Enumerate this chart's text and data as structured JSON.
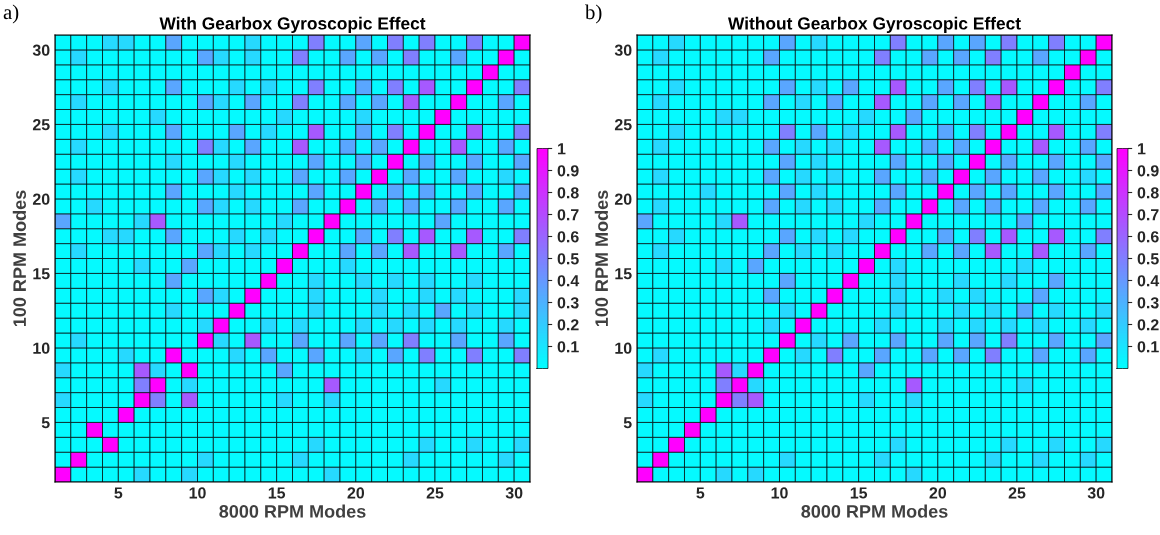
{
  "chart_data": [
    {
      "type": "heatmap",
      "title": "With Gearbox Gyroscopic Effect",
      "xlabel": "8000 RPM Modes",
      "ylabel": "100 RPM Modes",
      "annotations": [
        "a)"
      ],
      "xlim": [
        1,
        31
      ],
      "ylim": [
        1,
        31
      ],
      "xticks": [
        5,
        10,
        15,
        20,
        25,
        30
      ],
      "yticks": [
        5,
        10,
        15,
        20,
        25,
        30
      ],
      "clim": [
        0,
        1
      ],
      "cticks": [
        0.1,
        0.2,
        0.3,
        0.4,
        0.5,
        0.6,
        0.7,
        0.8,
        0.9,
        1
      ],
      "cells": [
        [
          0.02,
          0.02,
          0.02,
          0.15,
          0.15,
          0.02,
          0.02,
          0.35,
          0.02,
          0.02,
          0.02,
          0.02,
          0.15,
          0.02,
          0.02,
          0.02,
          0.5,
          0.02,
          0.02,
          0.35,
          0.02,
          0.5,
          0.02,
          0.5,
          0.02,
          0.02,
          0.5,
          0.02,
          0.02,
          1
        ],
        [
          0.02,
          0.15,
          0.02,
          0.02,
          0.02,
          0.02,
          0.02,
          0.02,
          0.02,
          0.35,
          0.15,
          0.02,
          0.15,
          0.02,
          0.02,
          0.5,
          0.02,
          0.02,
          0.35,
          0.02,
          0.35,
          0.02,
          0.5,
          0.02,
          0.02,
          0.35,
          0.02,
          0.02,
          1,
          0.02
        ],
        [
          0.02,
          0.02,
          0.02,
          0.02,
          0.02,
          0.02,
          0.02,
          0.02,
          0.02,
          0.02,
          0.02,
          0.02,
          0.02,
          0.02,
          0.02,
          0.02,
          0.02,
          0.02,
          0.02,
          0.02,
          0.02,
          0.02,
          0.02,
          0.02,
          0.02,
          0.02,
          0.02,
          1,
          0.02,
          0.02
        ],
        [
          0.02,
          0.02,
          0.02,
          0.15,
          0.02,
          0.02,
          0.02,
          0.35,
          0.02,
          0.02,
          0.02,
          0.15,
          0.02,
          0.15,
          0.02,
          0.02,
          0.5,
          0.02,
          0.02,
          0.35,
          0.02,
          0.5,
          0.02,
          0.65,
          0.02,
          0.02,
          1,
          0.02,
          0.02,
          0.5
        ],
        [
          0.02,
          0.15,
          0.02,
          0.02,
          0.02,
          0.02,
          0.02,
          0.02,
          0.02,
          0.35,
          0.15,
          0.02,
          0.35,
          0.02,
          0.02,
          0.5,
          0.02,
          0.02,
          0.35,
          0.02,
          0.35,
          0.02,
          0.65,
          0.02,
          0.02,
          1,
          0.02,
          0.02,
          0.35,
          0.02
        ],
        [
          0.02,
          0.02,
          0.02,
          0.02,
          0.02,
          0.02,
          0.15,
          0.02,
          0.02,
          0.02,
          0.02,
          0.02,
          0.02,
          0.02,
          0.15,
          0.02,
          0.02,
          0.02,
          0.02,
          0.15,
          0.02,
          0.02,
          0.02,
          0.02,
          1,
          0.02,
          0.02,
          0.02,
          0.02,
          0.02
        ],
        [
          0.02,
          0.02,
          0.02,
          0.15,
          0.02,
          0.02,
          0.02,
          0.35,
          0.02,
          0.02,
          0.02,
          0.35,
          0.02,
          0.15,
          0.02,
          0.02,
          0.65,
          0.02,
          0.02,
          0.35,
          0.02,
          0.5,
          0.02,
          1,
          0.02,
          0.02,
          0.65,
          0.02,
          0.02,
          0.5
        ],
        [
          0.02,
          0.15,
          0.02,
          0.02,
          0.02,
          0.02,
          0.02,
          0.02,
          0.02,
          0.5,
          0.15,
          0.02,
          0.35,
          0.02,
          0.02,
          0.65,
          0.02,
          0.02,
          0.35,
          0.02,
          0.35,
          0.02,
          1,
          0.02,
          0.02,
          0.65,
          0.02,
          0.02,
          0.35,
          0.02
        ],
        [
          0.02,
          0.02,
          0.02,
          0.02,
          0.02,
          0.02,
          0.02,
          0.15,
          0.02,
          0.02,
          0.02,
          0.15,
          0.02,
          0.02,
          0.02,
          0.02,
          0.35,
          0.02,
          0.02,
          0.35,
          0.02,
          1,
          0.02,
          0.35,
          0.02,
          0.02,
          0.35,
          0.02,
          0.02,
          0.35
        ],
        [
          0.02,
          0.15,
          0.02,
          0.02,
          0.02,
          0.02,
          0.02,
          0.02,
          0.02,
          0.35,
          0.15,
          0.02,
          0.15,
          0.02,
          0.02,
          0.35,
          0.02,
          0.02,
          0.35,
          0.02,
          1,
          0.02,
          0.35,
          0.02,
          0.02,
          0.35,
          0.02,
          0.02,
          0.15,
          0.02
        ],
        [
          0.02,
          0.02,
          0.02,
          0.02,
          0.02,
          0.02,
          0.02,
          0.35,
          0.02,
          0.02,
          0.02,
          0.15,
          0.02,
          0.02,
          0.02,
          0.02,
          0.35,
          0.02,
          0.02,
          1,
          0.02,
          0.35,
          0.02,
          0.35,
          0.02,
          0.02,
          0.35,
          0.02,
          0.02,
          0.35
        ],
        [
          0.02,
          0.02,
          0.15,
          0.02,
          0.02,
          0.02,
          0.02,
          0.02,
          0.02,
          0.35,
          0.15,
          0.02,
          0.15,
          0.02,
          0.02,
          0.35,
          0.02,
          0.02,
          1,
          0.02,
          0.35,
          0.02,
          0.35,
          0.02,
          0.02,
          0.35,
          0.02,
          0.02,
          0.35,
          0.02
        ],
        [
          0.35,
          0.02,
          0.02,
          0.02,
          0.02,
          0.15,
          0.65,
          0.02,
          0.02,
          0.02,
          0.02,
          0.02,
          0.02,
          0.02,
          0.15,
          0.02,
          0.02,
          1,
          0.02,
          0.02,
          0.02,
          0.02,
          0.02,
          0.02,
          0.35,
          0.02,
          0.02,
          0.02,
          0.02,
          0.02
        ],
        [
          0.02,
          0.02,
          0.02,
          0.15,
          0.15,
          0.02,
          0.02,
          0.35,
          0.02,
          0.02,
          0.02,
          0.15,
          0.02,
          0.15,
          0.02,
          0.02,
          1,
          0.02,
          0.02,
          0.35,
          0.02,
          0.5,
          0.02,
          0.65,
          0.02,
          0.02,
          0.65,
          0.02,
          0.02,
          0.5
        ],
        [
          0.02,
          0.15,
          0.02,
          0.02,
          0.02,
          0.02,
          0.02,
          0.02,
          0.02,
          0.35,
          0.15,
          0.02,
          0.15,
          0.02,
          0.02,
          1,
          0.02,
          0.02,
          0.35,
          0.02,
          0.35,
          0.02,
          0.65,
          0.02,
          0.02,
          0.65,
          0.02,
          0.02,
          0.35,
          0.02
        ],
        [
          0.02,
          0.02,
          0.02,
          0.02,
          0.02,
          0.15,
          0.02,
          0.02,
          0.35,
          0.02,
          0.02,
          0.02,
          0.02,
          0.02,
          1,
          0.02,
          0.02,
          0.02,
          0.15,
          0.02,
          0.02,
          0.02,
          0.02,
          0.02,
          0.02,
          0.02,
          0.02,
          0.02,
          0.02,
          0.02
        ],
        [
          0.02,
          0.02,
          0.02,
          0.02,
          0.02,
          0.02,
          0.02,
          0.35,
          0.02,
          0.02,
          0.02,
          0.02,
          0.02,
          1,
          0.02,
          0.02,
          0.15,
          0.02,
          0.02,
          0.15,
          0.02,
          0.15,
          0.02,
          0.15,
          0.02,
          0.02,
          0.15,
          0.02,
          0.02,
          0.02
        ],
        [
          0.02,
          0.02,
          0.02,
          0.02,
          0.02,
          0.02,
          0.02,
          0.02,
          0.02,
          0.35,
          0.15,
          0.02,
          1,
          0.02,
          0.02,
          0.02,
          0.15,
          0.02,
          0.02,
          0.02,
          0.15,
          0.02,
          0.02,
          0.15,
          0.02,
          0.15,
          0.02,
          0.02,
          0.02,
          0.15
        ],
        [
          0.02,
          0.02,
          0.02,
          0.02,
          0.02,
          0.02,
          0.02,
          0.15,
          0.02,
          0.02,
          0.02,
          1,
          0.02,
          0.02,
          0.02,
          0.02,
          0.15,
          0.02,
          0.02,
          0.02,
          0.15,
          0.02,
          0.15,
          0.02,
          0.35,
          0.02,
          0.15,
          0.02,
          0.02,
          0.15
        ],
        [
          0.02,
          0.02,
          0.02,
          0.02,
          0.02,
          0.02,
          0.02,
          0.02,
          0.02,
          0.15,
          1,
          0.02,
          0.02,
          0.15,
          0.02,
          0.15,
          0.02,
          0.02,
          0.02,
          0.15,
          0.02,
          0.15,
          0.02,
          0.15,
          0.02,
          0.15,
          0.02,
          0.02,
          0.15,
          0.02
        ],
        [
          0.02,
          0.15,
          0.02,
          0.02,
          0.02,
          0.02,
          0.02,
          0.02,
          0.02,
          1,
          0.15,
          0.02,
          0.65,
          0.02,
          0.02,
          0.35,
          0.02,
          0.02,
          0.35,
          0.02,
          0.35,
          0.02,
          0.5,
          0.02,
          0.02,
          0.35,
          0.02,
          0.02,
          0.35,
          0.02
        ],
        [
          0.02,
          0.02,
          0.02,
          0.02,
          0.15,
          0.02,
          0.02,
          1,
          0.02,
          0.02,
          0.02,
          0.15,
          0.02,
          0.35,
          0.02,
          0.02,
          0.35,
          0.02,
          0.02,
          0.15,
          0.02,
          0.35,
          0.02,
          0.5,
          0.02,
          0.02,
          0.5,
          0.02,
          0.02,
          0.5
        ],
        [
          0.15,
          0.02,
          0.02,
          0.02,
          0.02,
          0.65,
          0.15,
          0.02,
          1,
          0.02,
          0.02,
          0.02,
          0.02,
          0.02,
          0.35,
          0.02,
          0.02,
          0.02,
          0.02,
          0.02,
          0.02,
          0.02,
          0.02,
          0.02,
          0.02,
          0.02,
          0.02,
          0.02,
          0.02,
          0.02
        ],
        [
          0.02,
          0.02,
          0.02,
          0.02,
          0.02,
          0.5,
          1,
          0.02,
          0.15,
          0.02,
          0.02,
          0.02,
          0.02,
          0.02,
          0.02,
          0.02,
          0.02,
          0.65,
          0.02,
          0.02,
          0.02,
          0.02,
          0.02,
          0.02,
          0.15,
          0.02,
          0.02,
          0.02,
          0.02,
          0.02
        ],
        [
          0.15,
          0.02,
          0.02,
          0.02,
          0.02,
          1,
          0.5,
          0.02,
          0.65,
          0.02,
          0.02,
          0.02,
          0.02,
          0.02,
          0.15,
          0.02,
          0.02,
          0.15,
          0.02,
          0.02,
          0.02,
          0.02,
          0.02,
          0.02,
          0.02,
          0.02,
          0.02,
          0.02,
          0.02,
          0.02
        ],
        [
          0.02,
          0.02,
          0.02,
          0.02,
          1,
          0.02,
          0.02,
          0.02,
          0.02,
          0.02,
          0.02,
          0.02,
          0.02,
          0.02,
          0.02,
          0.02,
          0.02,
          0.02,
          0.02,
          0.02,
          0.02,
          0.02,
          0.02,
          0.02,
          0.02,
          0.02,
          0.02,
          0.02,
          0.02,
          0.02
        ],
        [
          0.02,
          0.02,
          1,
          0.02,
          0.02,
          0.02,
          0.02,
          0.02,
          0.02,
          0.02,
          0.02,
          0.02,
          0.02,
          0.02,
          0.02,
          0.02,
          0.02,
          0.02,
          0.02,
          0.02,
          0.02,
          0.02,
          0.02,
          0.02,
          0.02,
          0.02,
          0.02,
          0.02,
          0.02,
          0.02
        ],
        [
          0.02,
          0.02,
          0.02,
          1,
          0.02,
          0.02,
          0.02,
          0.02,
          0.02,
          0.02,
          0.02,
          0.02,
          0.02,
          0.02,
          0.02,
          0.02,
          0.15,
          0.02,
          0.02,
          0.02,
          0.02,
          0.02,
          0.02,
          0.15,
          0.02,
          0.02,
          0.15,
          0.02,
          0.02,
          0.15
        ],
        [
          0.02,
          1,
          0.02,
          0.02,
          0.02,
          0.02,
          0.02,
          0.02,
          0.02,
          0.15,
          0.02,
          0.02,
          0.02,
          0.02,
          0.02,
          0.15,
          0.02,
          0.02,
          0.02,
          0.02,
          0.02,
          0.02,
          0.15,
          0.02,
          0.02,
          0.02,
          0.02,
          0.02,
          0.15,
          0.02
        ],
        [
          1,
          0.02,
          0.02,
          0.02,
          0.02,
          0.15,
          0.02,
          0.02,
          0.15,
          0.02,
          0.02,
          0.02,
          0.02,
          0.02,
          0.02,
          0.02,
          0.02,
          0.15,
          0.02,
          0.02,
          0.02,
          0.02,
          0.02,
          0.02,
          0.02,
          0.02,
          0.02,
          0.02,
          0.02,
          0.02
        ]
      ]
    },
    {
      "type": "heatmap",
      "title": "Without Gearbox Gyroscopic Effect",
      "xlabel": "8000 RPM Modes",
      "ylabel": "100 RPM Modes",
      "annotations": [
        "b)"
      ],
      "xlim": [
        1,
        31
      ],
      "ylim": [
        1,
        31
      ],
      "xticks": [
        5,
        10,
        15,
        20,
        25,
        30
      ],
      "yticks": [
        5,
        10,
        15,
        20,
        25,
        30
      ],
      "clim": [
        0,
        1
      ],
      "cticks": [
        0.1,
        0.2,
        0.3,
        0.4,
        0.5,
        0.6,
        0.7,
        0.8,
        0.9,
        1
      ],
      "cells": [
        [
          0.02,
          0.02,
          0.15,
          0.02,
          0.02,
          0.02,
          0.02,
          0.02,
          0.02,
          0.35,
          0.02,
          0.15,
          0.02,
          0.02,
          0.02,
          0.02,
          0.5,
          0.02,
          0.02,
          0.35,
          0.02,
          0.35,
          0.02,
          0.5,
          0.02,
          0.02,
          0.5,
          0.02,
          0.02,
          1
        ],
        [
          0.02,
          0.15,
          0.02,
          0.02,
          0.02,
          0.02,
          0.02,
          0.02,
          0.35,
          0.02,
          0.02,
          0.02,
          0.02,
          0.02,
          0.02,
          0.5,
          0.02,
          0.02,
          0.35,
          0.02,
          0.35,
          0.02,
          0.5,
          0.02,
          0.02,
          0.35,
          0.02,
          0.02,
          1,
          0.02
        ],
        [
          0.02,
          0.02,
          0.02,
          0.02,
          0.02,
          0.02,
          0.02,
          0.02,
          0.02,
          0.02,
          0.02,
          0.02,
          0.02,
          0.02,
          0.02,
          0.02,
          0.02,
          0.02,
          0.02,
          0.02,
          0.02,
          0.02,
          0.02,
          0.02,
          0.02,
          0.02,
          0.02,
          1,
          0.02,
          0.02
        ],
        [
          0.02,
          0.02,
          0.15,
          0.02,
          0.02,
          0.02,
          0.02,
          0.02,
          0.02,
          0.35,
          0.02,
          0.15,
          0.02,
          0.35,
          0.02,
          0.02,
          0.65,
          0.02,
          0.02,
          0.35,
          0.02,
          0.5,
          0.02,
          0.65,
          0.02,
          0.02,
          1,
          0.02,
          0.02,
          0.5
        ],
        [
          0.02,
          0.15,
          0.02,
          0.02,
          0.02,
          0.02,
          0.02,
          0.02,
          0.35,
          0.02,
          0.15,
          0.02,
          0.35,
          0.02,
          0.02,
          0.65,
          0.02,
          0.02,
          0.35,
          0.02,
          0.35,
          0.02,
          0.65,
          0.02,
          0.02,
          1,
          0.02,
          0.02,
          0.35,
          0.02
        ],
        [
          0.02,
          0.02,
          0.02,
          0.02,
          0.02,
          0.15,
          0.15,
          0.02,
          0.02,
          0.02,
          0.02,
          0.02,
          0.02,
          0.02,
          0.15,
          0.02,
          0.02,
          0.35,
          0.02,
          0.02,
          0.02,
          0.02,
          0.02,
          0.02,
          1,
          0.02,
          0.02,
          0.02,
          0.02,
          0.02
        ],
        [
          0.02,
          0.02,
          0.15,
          0.02,
          0.02,
          0.02,
          0.02,
          0.02,
          0.02,
          0.5,
          0.02,
          0.35,
          0.02,
          0.15,
          0.02,
          0.02,
          0.65,
          0.02,
          0.02,
          0.35,
          0.02,
          0.5,
          0.02,
          1,
          0.02,
          0.02,
          0.65,
          0.02,
          0.02,
          0.5
        ],
        [
          0.02,
          0.15,
          0.02,
          0.02,
          0.02,
          0.02,
          0.02,
          0.02,
          0.35,
          0.02,
          0.15,
          0.02,
          0.15,
          0.02,
          0.02,
          0.65,
          0.02,
          0.02,
          0.35,
          0.02,
          0.35,
          0.02,
          1,
          0.02,
          0.02,
          0.65,
          0.02,
          0.02,
          0.35,
          0.02
        ],
        [
          0.02,
          0.02,
          0.02,
          0.02,
          0.02,
          0.02,
          0.02,
          0.02,
          0.02,
          0.35,
          0.02,
          0.15,
          0.02,
          0.02,
          0.02,
          0.02,
          0.35,
          0.02,
          0.02,
          0.35,
          0.02,
          1,
          0.02,
          0.35,
          0.02,
          0.02,
          0.35,
          0.02,
          0.02,
          0.35
        ],
        [
          0.02,
          0.15,
          0.02,
          0.02,
          0.02,
          0.02,
          0.02,
          0.02,
          0.35,
          0.02,
          0.15,
          0.02,
          0.15,
          0.02,
          0.02,
          0.35,
          0.02,
          0.02,
          0.35,
          0.02,
          1,
          0.02,
          0.35,
          0.02,
          0.02,
          0.35,
          0.02,
          0.02,
          0.15,
          0.02
        ],
        [
          0.02,
          0.02,
          0.02,
          0.02,
          0.15,
          0.02,
          0.02,
          0.02,
          0.02,
          0.35,
          0.02,
          0.15,
          0.02,
          0.02,
          0.02,
          0.02,
          0.35,
          0.02,
          0.02,
          1,
          0.02,
          0.35,
          0.02,
          0.35,
          0.02,
          0.02,
          0.35,
          0.02,
          0.02,
          0.35
        ],
        [
          0.02,
          0.15,
          0.02,
          0.02,
          0.02,
          0.02,
          0.02,
          0.02,
          0.35,
          0.02,
          0.15,
          0.02,
          0.15,
          0.02,
          0.02,
          0.35,
          0.02,
          0.02,
          1,
          0.02,
          0.35,
          0.02,
          0.35,
          0.02,
          0.02,
          0.35,
          0.02,
          0.02,
          0.35,
          0.02
        ],
        [
          0.35,
          0.02,
          0.02,
          0.02,
          0.02,
          0.15,
          0.65,
          0.02,
          0.02,
          0.02,
          0.02,
          0.02,
          0.02,
          0.02,
          0.15,
          0.02,
          0.02,
          1,
          0.02,
          0.02,
          0.02,
          0.02,
          0.02,
          0.02,
          0.35,
          0.02,
          0.02,
          0.02,
          0.02,
          0.02
        ],
        [
          0.02,
          0.02,
          0.15,
          0.02,
          0.02,
          0.02,
          0.02,
          0.02,
          0.02,
          0.35,
          0.02,
          0.15,
          0.02,
          0.15,
          0.02,
          0.02,
          1,
          0.02,
          0.02,
          0.35,
          0.02,
          0.5,
          0.02,
          0.65,
          0.02,
          0.02,
          0.65,
          0.02,
          0.02,
          0.5
        ],
        [
          0.02,
          0.15,
          0.02,
          0.02,
          0.02,
          0.02,
          0.02,
          0.02,
          0.35,
          0.02,
          0.15,
          0.02,
          0.15,
          0.02,
          0.02,
          1,
          0.02,
          0.02,
          0.35,
          0.02,
          0.35,
          0.02,
          0.65,
          0.02,
          0.02,
          0.65,
          0.02,
          0.02,
          0.35,
          0.02
        ],
        [
          0.02,
          0.02,
          0.02,
          0.02,
          0.02,
          0.15,
          0.02,
          0.35,
          0.02,
          0.02,
          0.02,
          0.02,
          0.02,
          0.02,
          1,
          0.02,
          0.15,
          0.02,
          0.02,
          0.02,
          0.02,
          0.02,
          0.02,
          0.02,
          0.15,
          0.02,
          0.02,
          0.02,
          0.02,
          0.02
        ],
        [
          0.02,
          0.02,
          0.02,
          0.02,
          0.02,
          0.02,
          0.02,
          0.02,
          0.02,
          0.35,
          0.02,
          0.02,
          0.02,
          1,
          0.02,
          0.02,
          0.15,
          0.02,
          0.02,
          0.02,
          0.15,
          0.02,
          0.02,
          0.15,
          0.02,
          0.02,
          0.35,
          0.02,
          0.02,
          0.02
        ],
        [
          0.02,
          0.02,
          0.02,
          0.02,
          0.02,
          0.02,
          0.02,
          0.02,
          0.35,
          0.02,
          0.02,
          0.02,
          1,
          0.02,
          0.02,
          0.02,
          0.15,
          0.02,
          0.02,
          0.15,
          0.02,
          0.15,
          0.02,
          0.02,
          0.02,
          0.35,
          0.02,
          0.02,
          0.02,
          0.02
        ],
        [
          0.02,
          0.02,
          0.02,
          0.02,
          0.02,
          0.02,
          0.02,
          0.02,
          0.02,
          0.15,
          0.02,
          1,
          0.02,
          0.02,
          0.02,
          0.02,
          0.15,
          0.02,
          0.02,
          0.02,
          0.15,
          0.02,
          0.15,
          0.02,
          0.35,
          0.02,
          0.15,
          0.02,
          0.02,
          0.15
        ],
        [
          0.02,
          0.02,
          0.02,
          0.02,
          0.02,
          0.02,
          0.02,
          0.02,
          0.15,
          0.02,
          1,
          0.02,
          0.02,
          0.02,
          0.02,
          0.15,
          0.02,
          0.02,
          0.02,
          0.15,
          0.02,
          0.15,
          0.02,
          0.15,
          0.02,
          0.15,
          0.02,
          0.02,
          0.15,
          0.02
        ],
        [
          0.02,
          0.02,
          0.02,
          0.02,
          0.02,
          0.02,
          0.02,
          0.02,
          0.02,
          1,
          0.02,
          0.15,
          0.02,
          0.35,
          0.02,
          0.02,
          0.35,
          0.02,
          0.02,
          0.35,
          0.02,
          0.35,
          0.02,
          0.5,
          0.02,
          0.02,
          0.35,
          0.02,
          0.02,
          0.35
        ],
        [
          0.02,
          0.15,
          0.02,
          0.02,
          0.02,
          0.02,
          0.02,
          0.02,
          1,
          0.02,
          0.15,
          0.02,
          0.5,
          0.02,
          0.02,
          0.35,
          0.02,
          0.02,
          0.35,
          0.02,
          0.35,
          0.02,
          0.5,
          0.02,
          0.02,
          0.35,
          0.02,
          0.02,
          0.35,
          0.02
        ],
        [
          0.15,
          0.02,
          0.02,
          0.02,
          0.02,
          0.65,
          0.15,
          1,
          0.02,
          0.02,
          0.02,
          0.02,
          0.02,
          0.02,
          0.35,
          0.02,
          0.02,
          0.02,
          0.02,
          0.02,
          0.02,
          0.02,
          0.02,
          0.02,
          0.02,
          0.02,
          0.02,
          0.02,
          0.02,
          0.02
        ],
        [
          0.02,
          0.02,
          0.02,
          0.02,
          0.02,
          0.5,
          1,
          0.15,
          0.02,
          0.02,
          0.02,
          0.02,
          0.02,
          0.02,
          0.02,
          0.02,
          0.02,
          0.65,
          0.02,
          0.02,
          0.02,
          0.02,
          0.02,
          0.02,
          0.15,
          0.02,
          0.02,
          0.02,
          0.02,
          0.02
        ],
        [
          0.15,
          0.02,
          0.02,
          0.02,
          0.02,
          1,
          0.5,
          0.65,
          0.02,
          0.02,
          0.02,
          0.02,
          0.02,
          0.02,
          0.15,
          0.02,
          0.02,
          0.15,
          0.02,
          0.02,
          0.02,
          0.02,
          0.02,
          0.02,
          0.02,
          0.02,
          0.02,
          0.02,
          0.02,
          0.02
        ],
        [
          0.02,
          0.02,
          0.02,
          0.02,
          1,
          0.02,
          0.02,
          0.02,
          0.02,
          0.02,
          0.02,
          0.02,
          0.02,
          0.02,
          0.02,
          0.02,
          0.02,
          0.02,
          0.02,
          0.02,
          0.02,
          0.02,
          0.02,
          0.02,
          0.02,
          0.02,
          0.02,
          0.02,
          0.02,
          0.02
        ],
        [
          0.02,
          0.02,
          0.02,
          1,
          0.02,
          0.02,
          0.02,
          0.02,
          0.02,
          0.02,
          0.02,
          0.02,
          0.02,
          0.02,
          0.02,
          0.02,
          0.02,
          0.02,
          0.02,
          0.02,
          0.02,
          0.02,
          0.02,
          0.02,
          0.02,
          0.02,
          0.02,
          0.02,
          0.02,
          0.02
        ],
        [
          0.02,
          0.02,
          1,
          0.02,
          0.02,
          0.02,
          0.02,
          0.02,
          0.02,
          0.02,
          0.02,
          0.02,
          0.02,
          0.02,
          0.02,
          0.02,
          0.15,
          0.02,
          0.02,
          0.02,
          0.02,
          0.02,
          0.02,
          0.15,
          0.02,
          0.02,
          0.15,
          0.02,
          0.02,
          0.15
        ],
        [
          0.02,
          1,
          0.02,
          0.02,
          0.02,
          0.02,
          0.02,
          0.02,
          0.02,
          0.15,
          0.02,
          0.02,
          0.02,
          0.02,
          0.02,
          0.15,
          0.02,
          0.02,
          0.02,
          0.02,
          0.02,
          0.02,
          0.15,
          0.02,
          0.02,
          0.15,
          0.02,
          0.02,
          0.15,
          0.02
        ],
        [
          1,
          0.02,
          0.02,
          0.02,
          0.02,
          0.15,
          0.02,
          0.15,
          0.02,
          0.02,
          0.02,
          0.02,
          0.02,
          0.02,
          0.02,
          0.02,
          0.02,
          0.15,
          0.02,
          0.02,
          0.02,
          0.02,
          0.02,
          0.02,
          0.02,
          0.02,
          0.02,
          0.02,
          0.02,
          0.02
        ]
      ]
    }
  ]
}
